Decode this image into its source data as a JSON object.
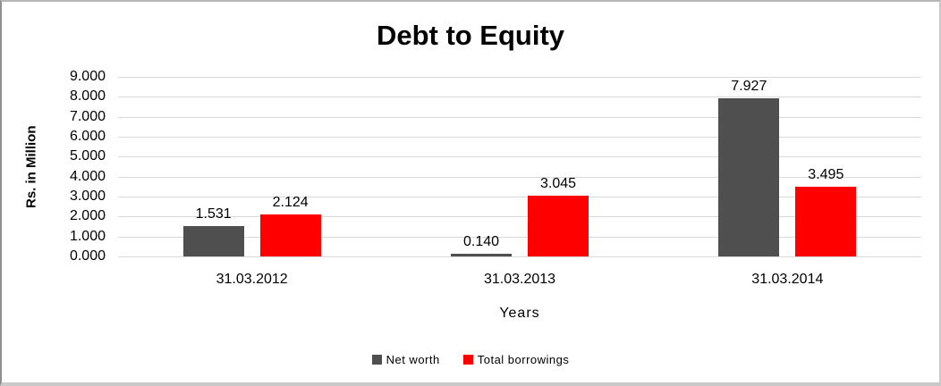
{
  "chart_data": {
    "type": "bar",
    "title": "Debt to Equity",
    "xlabel": "Years",
    "ylabel": "Rs. in Million",
    "ylim": [
      0,
      9
    ],
    "ytick_step": 1,
    "ytick_labels": [
      "0.000",
      "1.000",
      "2.000",
      "3.000",
      "4.000",
      "5.000",
      "6.000",
      "7.000",
      "8.000",
      "9.000"
    ],
    "grid": "horizontal",
    "gridline_color": "#d9d9d9",
    "legend_position": "bottom",
    "categories": [
      "31.03.2012",
      "31.03.2013",
      "31.03.2014"
    ],
    "series": [
      {
        "name": "Net worth",
        "color": "#4f4f4f",
        "values": [
          1.531,
          0.14,
          7.927
        ],
        "labels": [
          "1.531",
          "0.140",
          "7.927"
        ]
      },
      {
        "name": "Total borrowings",
        "color": "#fe0000",
        "values": [
          2.124,
          3.045,
          3.495
        ],
        "labels": [
          "2.124",
          "3.045",
          "3.495"
        ]
      }
    ]
  }
}
